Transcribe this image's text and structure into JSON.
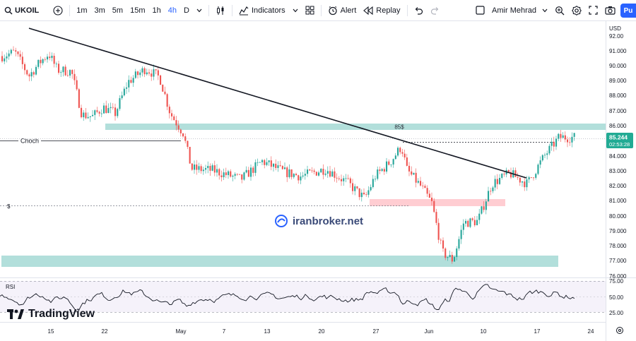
{
  "toolbar": {
    "symbol": "UKOIL",
    "intervals": [
      "1m",
      "3m",
      "5m",
      "15m",
      "1h",
      "4h",
      "D"
    ],
    "active_interval": "4h",
    "indicators_label": "Indicators",
    "alert_label": "Alert",
    "replay_label": "Replay",
    "user_name": "Amir Mehrad",
    "publish_label": "Pu"
  },
  "chart_data": {
    "type": "candlestick",
    "currency": "USD",
    "price_ticks": [
      "92.00",
      "91.000",
      "90.000",
      "89.000",
      "88.000",
      "87.000",
      "86.000",
      "84.000",
      "83.000",
      "82.000",
      "81.000",
      "80.000",
      "79.000",
      "78.000",
      "77.000",
      "76.000"
    ],
    "last_price": "85.244",
    "countdown": "02:53:28",
    "x_ticks": [
      "15",
      "22",
      "May",
      "7",
      "13",
      "20",
      "27",
      "Jun",
      "10",
      "17",
      "24"
    ],
    "annotations": {
      "resistance_label": "85$",
      "choch_label": "Choch",
      "support_marker": "$"
    },
    "rsi": {
      "label": "RSI",
      "levels": [
        "75.00",
        "50.00",
        "25.00"
      ]
    },
    "watermark": "iranbroker.net",
    "brand": "TradingView"
  },
  "colors": {
    "up": "#26a69a",
    "down": "#ef5350",
    "accent": "#2962ff",
    "resistance_zone": "#b2dfdb",
    "demand_zone": "#ffcdd2",
    "rsi_band": "#ede7f6",
    "last_price_badge": "#22ab94"
  }
}
